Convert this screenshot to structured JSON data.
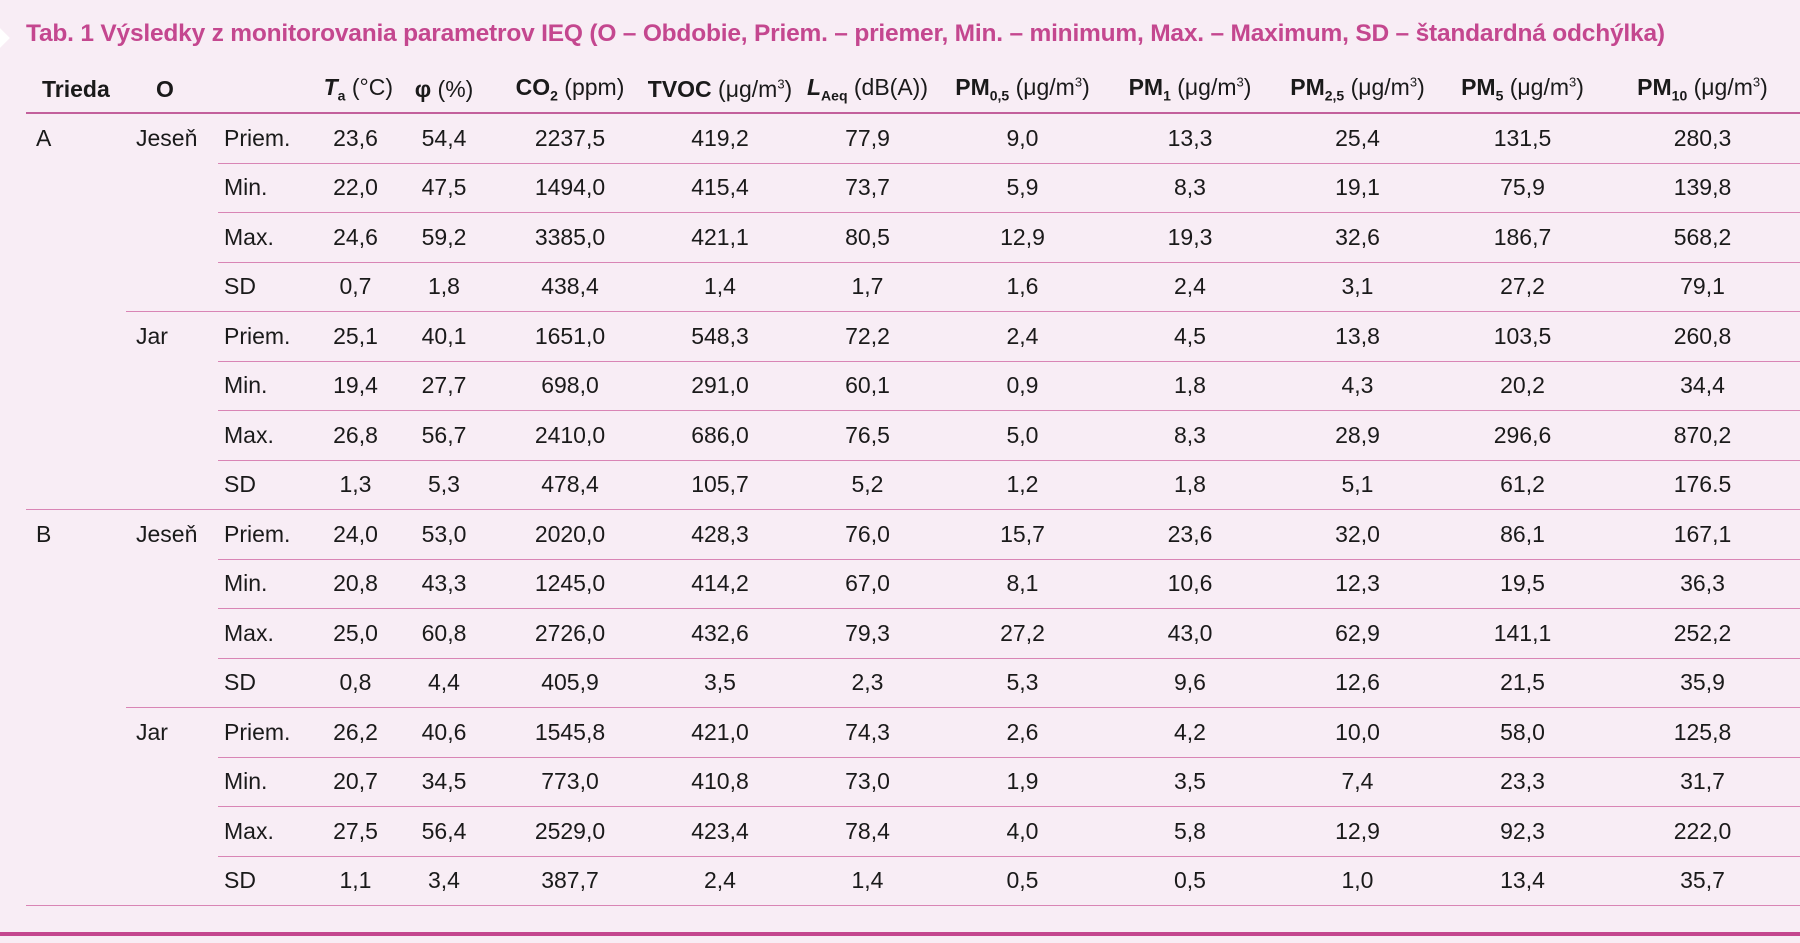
{
  "caption": "Tab. 1 Výsledky z monitorovania parametrov IEQ (O – Obdobie, Priem. – priemer, Min. – minimum, Max. – Maximum, SD – štandardná odchýlka)",
  "headers": {
    "trieda": "Trieda",
    "obdobie": "O",
    "ta": {
      "main": "T",
      "sub": "a",
      "unit": " (°C)"
    },
    "phi": {
      "main": "φ",
      "unit": " (%)"
    },
    "co2": {
      "main": "CO",
      "sub": "2",
      "unit": " (ppm)"
    },
    "tvoc": {
      "main": "TVOC",
      "unit": " (μg/m",
      "sup": "3",
      "close": ")"
    },
    "laeq": {
      "main": "L",
      "sub": "Aeq",
      "unit": " (dB(A))"
    },
    "pm05": {
      "main": "PM",
      "sub": "0,5",
      "unit": " (μg/m",
      "sup": "3",
      "close": ")"
    },
    "pm1": {
      "main": "PM",
      "sub": "1",
      "unit": " (μg/m",
      "sup": "3",
      "close": ")"
    },
    "pm25": {
      "main": "PM",
      "sub": "2,5",
      "unit": " (μg/m",
      "sup": "3",
      "close": ")"
    },
    "pm5": {
      "main": "PM",
      "sub": "5",
      "unit": " (μg/m",
      "sup": "3",
      "close": ")"
    },
    "pm10": {
      "main": "PM",
      "sub": "10",
      "unit": " (μg/m",
      "sup": "3",
      "close": ")"
    }
  },
  "rows": [
    {
      "trieda": "A",
      "obdobie": "Jeseň",
      "stat": "Priem.",
      "values": [
        "23,6",
        "54,4",
        "2237,5",
        "419,2",
        "77,9",
        "9,0",
        "13,3",
        "25,4",
        "131,5",
        "280,3"
      ]
    },
    {
      "trieda": "",
      "obdobie": "",
      "stat": "Min.",
      "values": [
        "22,0",
        "47,5",
        "1494,0",
        "415,4",
        "73,7",
        "5,9",
        "8,3",
        "19,1",
        "75,9",
        "139,8"
      ]
    },
    {
      "trieda": "",
      "obdobie": "",
      "stat": "Max.",
      "values": [
        "24,6",
        "59,2",
        "3385,0",
        "421,1",
        "80,5",
        "12,9",
        "19,3",
        "32,6",
        "186,7",
        "568,2"
      ]
    },
    {
      "trieda": "",
      "obdobie": "",
      "stat": "SD",
      "values": [
        "0,7",
        "1,8",
        "438,4",
        "1,4",
        "1,7",
        "1,6",
        "2,4",
        "3,1",
        "27,2",
        "79,1"
      ]
    },
    {
      "trieda": "",
      "obdobie": "Jar",
      "stat": "Priem.",
      "values": [
        "25,1",
        "40,1",
        "1651,0",
        "548,3",
        "72,2",
        "2,4",
        "4,5",
        "13,8",
        "103,5",
        "260,8"
      ]
    },
    {
      "trieda": "",
      "obdobie": "",
      "stat": "Min.",
      "values": [
        "19,4",
        "27,7",
        "698,0",
        "291,0",
        "60,1",
        "0,9",
        "1,8",
        "4,3",
        "20,2",
        "34,4"
      ]
    },
    {
      "trieda": "",
      "obdobie": "",
      "stat": "Max.",
      "values": [
        "26,8",
        "56,7",
        "2410,0",
        "686,0",
        "76,5",
        "5,0",
        "8,3",
        "28,9",
        "296,6",
        "870,2"
      ]
    },
    {
      "trieda": "",
      "obdobie": "",
      "stat": "SD",
      "values": [
        "1,3",
        "5,3",
        "478,4",
        "105,7",
        "5,2",
        "1,2",
        "1,8",
        "5,1",
        "61,2",
        "176.5"
      ]
    },
    {
      "trieda": "B",
      "obdobie": "Jeseň",
      "stat": "Priem.",
      "values": [
        "24,0",
        "53,0",
        "2020,0",
        "428,3",
        "76,0",
        "15,7",
        "23,6",
        "32,0",
        "86,1",
        "167,1"
      ]
    },
    {
      "trieda": "",
      "obdobie": "",
      "stat": "Min.",
      "values": [
        "20,8",
        "43,3",
        "1245,0",
        "414,2",
        "67,0",
        "8,1",
        "10,6",
        "12,3",
        "19,5",
        "36,3"
      ]
    },
    {
      "trieda": "",
      "obdobie": "",
      "stat": "Max.",
      "values": [
        "25,0",
        "60,8",
        "2726,0",
        "432,6",
        "79,3",
        "27,2",
        "43,0",
        "62,9",
        "141,1",
        "252,2"
      ]
    },
    {
      "trieda": "",
      "obdobie": "",
      "stat": "SD",
      "values": [
        "0,8",
        "4,4",
        "405,9",
        "3,5",
        "2,3",
        "5,3",
        "9,6",
        "12,6",
        "21,5",
        "35,9"
      ]
    },
    {
      "trieda": "",
      "obdobie": "Jar",
      "stat": "Priem.",
      "values": [
        "26,2",
        "40,6",
        "1545,8",
        "421,0",
        "74,3",
        "2,6",
        "4,2",
        "10,0",
        "58,0",
        "125,8"
      ]
    },
    {
      "trieda": "",
      "obdobie": "",
      "stat": "Min.",
      "values": [
        "20,7",
        "34,5",
        "773,0",
        "410,8",
        "73,0",
        "1,9",
        "3,5",
        "7,4",
        "23,3",
        "31,7"
      ]
    },
    {
      "trieda": "",
      "obdobie": "",
      "stat": "Max.",
      "values": [
        "27,5",
        "56,4",
        "2529,0",
        "423,4",
        "78,4",
        "4,0",
        "5,8",
        "12,9",
        "92,3",
        "222,0"
      ]
    },
    {
      "trieda": "",
      "obdobie": "",
      "stat": "SD",
      "values": [
        "1,1",
        "3,4",
        "387,7",
        "2,4",
        "1,4",
        "0,5",
        "0,5",
        "1,0",
        "13,4",
        "35,7"
      ]
    }
  ],
  "colors": {
    "accent": "#c4478f",
    "background": "#f8edf5",
    "rule": "#d985b5"
  }
}
